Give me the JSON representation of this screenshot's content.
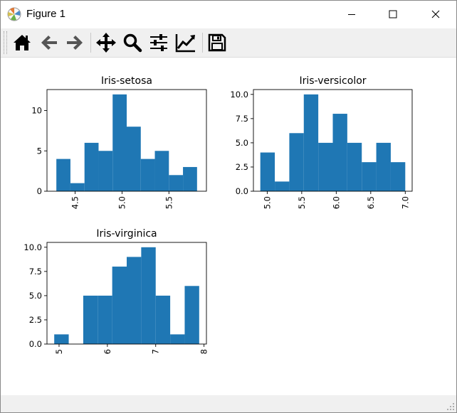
{
  "window": {
    "title": "Figure 1"
  },
  "toolbar": {
    "tools": [
      {
        "name": "home-icon"
      },
      {
        "name": "back-arrow-icon"
      },
      {
        "name": "forward-arrow-icon"
      },
      {
        "name": "pan-icon"
      },
      {
        "name": "zoom-icon"
      },
      {
        "name": "subplots-config-icon"
      },
      {
        "name": "edit-axes-icon"
      },
      {
        "name": "save-icon"
      }
    ]
  },
  "colors": {
    "bar": "#1f77b4",
    "forward_icon": "#555555",
    "back_icon": "#555555"
  },
  "chart_data": [
    {
      "type": "bar",
      "title": "Iris-setosa",
      "bin_edges": [
        4.3,
        4.45,
        4.6,
        4.75,
        4.9,
        5.05,
        5.2,
        5.35,
        5.5,
        5.65,
        5.8
      ],
      "values": [
        4,
        1,
        6,
        5,
        12,
        8,
        4,
        5,
        2,
        3
      ],
      "xlim": [
        4.2,
        5.9
      ],
      "ylim": [
        0,
        12.6
      ],
      "xticks": [
        4.5,
        5.0,
        5.5
      ],
      "xtick_labels": [
        "4.5",
        "5.0",
        "5.5"
      ],
      "yticks": [
        0,
        5,
        10
      ],
      "ytick_labels": [
        "0",
        "5",
        "10"
      ]
    },
    {
      "type": "bar",
      "title": "Iris-versicolor",
      "bin_edges": [
        4.9,
        5.11,
        5.32,
        5.53,
        5.74,
        5.95,
        6.16,
        6.37,
        6.58,
        6.79,
        7.0
      ],
      "values": [
        4,
        1,
        6,
        10,
        5,
        8,
        5,
        3,
        5,
        3
      ],
      "xlim": [
        4.8,
        7.1
      ],
      "ylim": [
        0,
        10.5
      ],
      "xticks": [
        5.0,
        5.5,
        6.0,
        6.5,
        7.0
      ],
      "xtick_labels": [
        "5.0",
        "5.5",
        "6.0",
        "6.5",
        "7.0"
      ],
      "yticks": [
        0,
        2.5,
        5.0,
        7.5,
        10.0
      ],
      "ytick_labels": [
        "0.0",
        "2.5",
        "5.0",
        "7.5",
        "10.0"
      ]
    },
    {
      "type": "bar",
      "title": "Iris-virginica",
      "bin_edges": [
        4.9,
        5.2,
        5.5,
        5.8,
        6.1,
        6.4,
        6.7,
        7.0,
        7.3,
        7.6,
        7.9
      ],
      "values": [
        1,
        0,
        5,
        5,
        8,
        9,
        10,
        5,
        1,
        6
      ],
      "xlim": [
        4.75,
        8.05
      ],
      "ylim": [
        0,
        10.5
      ],
      "xticks": [
        5,
        6,
        7,
        8
      ],
      "xtick_labels": [
        "5",
        "6",
        "7",
        "8"
      ],
      "yticks": [
        0,
        2.5,
        5.0,
        7.5,
        10.0
      ],
      "ytick_labels": [
        "0.0",
        "2.5",
        "5.0",
        "7.5",
        "10.0"
      ]
    }
  ]
}
